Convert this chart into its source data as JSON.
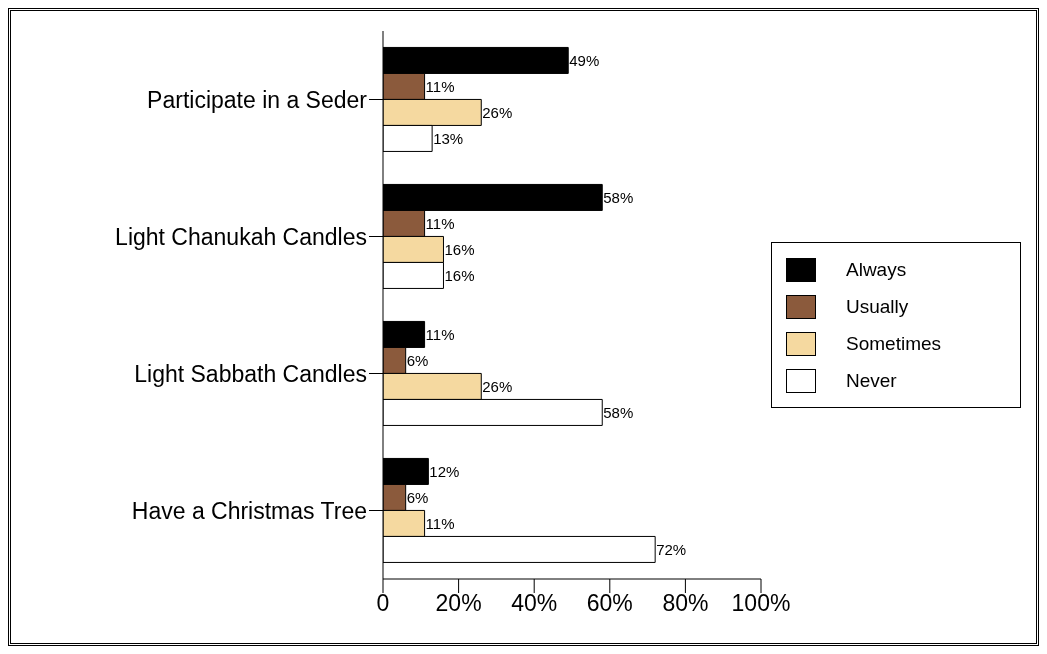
{
  "chart_data": {
    "type": "bar",
    "orientation": "horizontal",
    "categories": [
      "Participate in a Seder",
      "Light Chanukah Candles",
      "Light Sabbath Candles",
      "Have a Christmas Tree"
    ],
    "series": [
      {
        "name": "Always",
        "color": "#000000",
        "values": [
          49,
          58,
          11,
          12
        ],
        "value_labels": [
          "49%",
          "58%",
          "11%",
          "12%"
        ]
      },
      {
        "name": "Usually",
        "color": "#8b5a3c",
        "values": [
          11,
          11,
          6,
          6
        ],
        "value_labels": [
          "11%",
          "11%",
          "6%",
          "6%"
        ]
      },
      {
        "name": "Sometimes",
        "color": "#f5d9a0",
        "values": [
          26,
          16,
          26,
          11
        ],
        "value_labels": [
          "26%",
          "16%",
          "26%",
          "11%"
        ]
      },
      {
        "name": "Never",
        "color": "#ffffff",
        "values": [
          13,
          16,
          58,
          72
        ],
        "value_labels": [
          "13%",
          "16%",
          "58%",
          "72%"
        ]
      }
    ],
    "xlim": [
      0,
      100
    ],
    "xticks": [
      0,
      {
        "value": 20,
        "label": "20%"
      },
      {
        "value": 40,
        "label": "40%"
      },
      {
        "value": 60,
        "label": "60%"
      },
      {
        "value": 80,
        "label": "80%"
      },
      {
        "value": 100,
        "label": "100%"
      }
    ],
    "grid": false,
    "legend": "right"
  }
}
